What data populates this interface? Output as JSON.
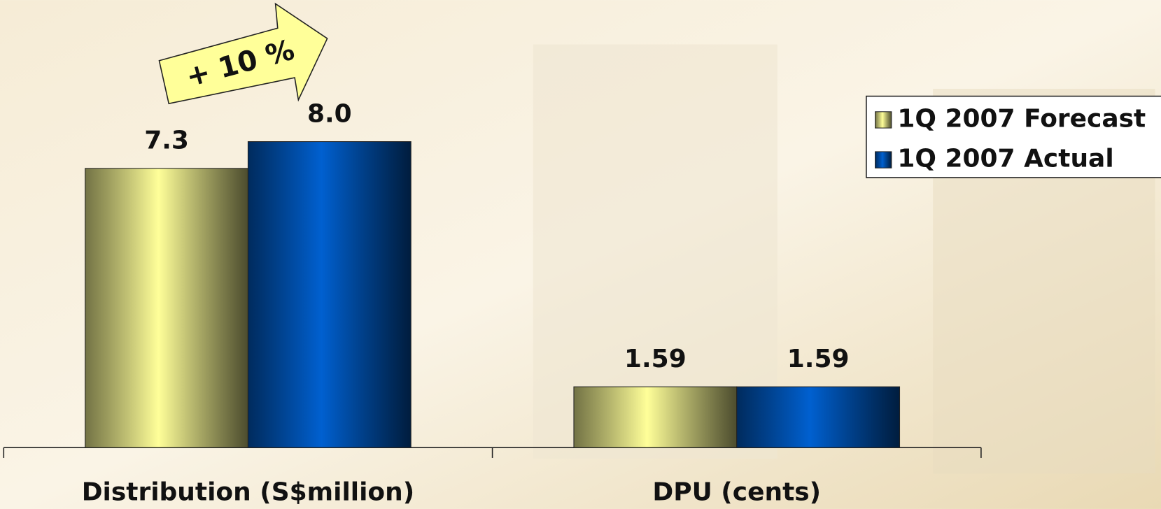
{
  "chart_data": {
    "type": "bar",
    "categories": [
      "Distribution (S$million)",
      "DPU (cents)"
    ],
    "series": [
      {
        "name": "1Q 2007 Forecast",
        "color": "#ffff99",
        "values": [
          7.3,
          1.59
        ],
        "value_labels": [
          "7.3",
          "1.59"
        ]
      },
      {
        "name": "1Q 2007 Actual",
        "color": "#0060d0",
        "values": [
          8.0,
          1.59
        ],
        "value_labels": [
          "8.0",
          "1.59"
        ]
      }
    ],
    "ylim": [
      0,
      10
    ],
    "annotations": [
      "+ 10 %"
    ],
    "legend": "upper right"
  }
}
